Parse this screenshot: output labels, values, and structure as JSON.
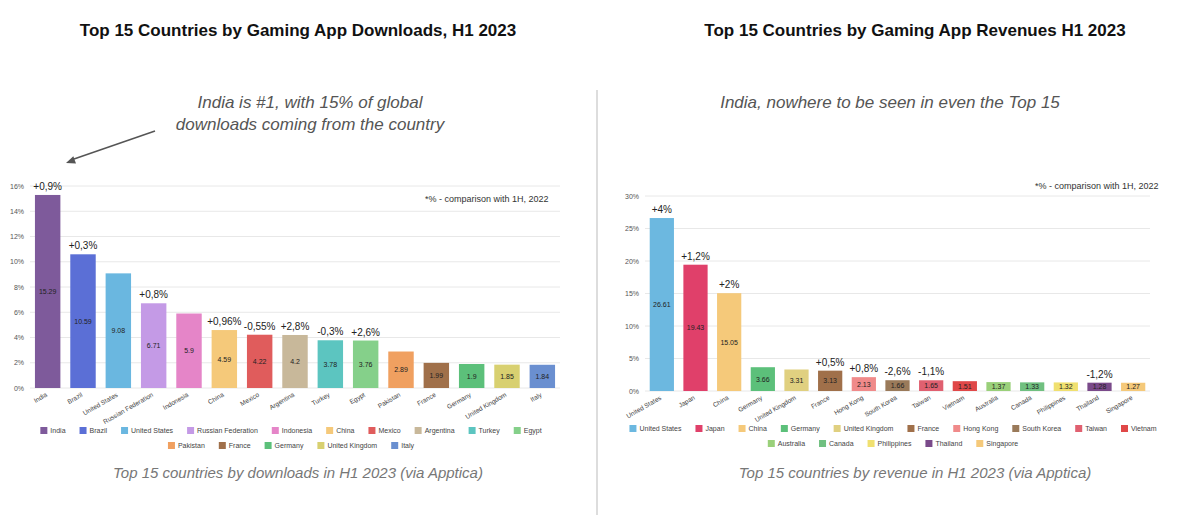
{
  "chart_data": [
    {
      "type": "bar",
      "title": "Top 15 Countries by Gaming App Downloads, H1 2023",
      "annotation": "India is #1, with 15% of global downloads coming from the country",
      "note": "*% - comparison with 1H, 2022",
      "caption": "Top 15 countries by downloads in H1 2023 (via Apptica)",
      "categories": [
        "India",
        "Brazil",
        "United States",
        "Russian Federation",
        "Indonesia",
        "China",
        "Mexico",
        "Argentina",
        "Turkey",
        "Egypt",
        "Pakistan",
        "France",
        "Germany",
        "United Kingdom",
        "Italy"
      ],
      "values": [
        15.29,
        10.59,
        9.08,
        6.71,
        5.9,
        4.59,
        4.22,
        4.2,
        3.78,
        3.76,
        2.89,
        1.99,
        1.9,
        1.85,
        1.84
      ],
      "colors": [
        "#7e5a9b",
        "#5b6fd6",
        "#6ab7e0",
        "#c49ae6",
        "#e585c8",
        "#f5c97a",
        "#e05c5c",
        "#c8b89a",
        "#5cc5c0",
        "#85d08a",
        "#f0a060",
        "#a0704a",
        "#5cc07a",
        "#d8d070",
        "#6a8fd0"
      ],
      "change_labels": [
        "+0,9%",
        "+0,3%",
        null,
        "+0,8%",
        null,
        "+0,96%",
        "-0,55%",
        "+2,8%",
        "-0,3%",
        "+2,6%",
        null,
        null,
        null,
        null,
        null
      ],
      "ylim": [
        0,
        16
      ],
      "yticks": [
        {
          "value": 0,
          "label": "0%"
        },
        {
          "value": 2,
          "label": "2%"
        },
        {
          "value": 4,
          "label": "4%"
        },
        {
          "value": 6,
          "label": "6%"
        },
        {
          "value": 8,
          "label": "8%"
        },
        {
          "value": 10,
          "label": "10%"
        },
        {
          "value": 12,
          "label": "12%"
        },
        {
          "value": 14,
          "label": "14%"
        },
        {
          "value": 16,
          "label": "16%"
        }
      ],
      "grid": true,
      "data_labels": true,
      "legend": "bottom"
    },
    {
      "type": "bar",
      "title": "Top 15 Countries by Gaming App Revenues H1 2023",
      "annotation": "India, nowhere to be seen in even the Top 15",
      "note": "*% - comparison with 1H, 2022",
      "caption": "Top 15 countries by revenue in H1 2023 (via Apptica)",
      "categories": [
        "United States",
        "Japan",
        "China",
        "Germany",
        "United Kingdom",
        "France",
        "Hong Kong",
        "South Korea",
        "Taiwan",
        "Vietnam",
        "Australia",
        "Canada",
        "Philippines",
        "Thailand",
        "Singapore"
      ],
      "values": [
        26.61,
        19.43,
        15.05,
        3.66,
        3.31,
        3.13,
        2.13,
        1.66,
        1.65,
        1.51,
        1.37,
        1.33,
        1.32,
        1.28,
        1.27
      ],
      "colors": [
        "#6cb8e0",
        "#e0406a",
        "#f5c97a",
        "#5cc07a",
        "#e0d080",
        "#a0704a",
        "#f08a8a",
        "#9a7a5a",
        "#e06070",
        "#e04848",
        "#9ad07a",
        "#70c080",
        "#f0e070",
        "#7a4a8a",
        "#f5c97a"
      ],
      "change_labels": [
        "+4%",
        "+1,2%",
        "+2%",
        null,
        null,
        "+0,5%",
        "+0,8%",
        "-2,6%",
        "-1,1%",
        null,
        null,
        null,
        null,
        "-1,2%",
        null
      ],
      "ylim": [
        0,
        30
      ],
      "yticks": [
        {
          "value": 0,
          "label": "0%"
        },
        {
          "value": 5,
          "label": "5%"
        },
        {
          "value": 10,
          "label": "10%"
        },
        {
          "value": 15,
          "label": "15%"
        },
        {
          "value": 20,
          "label": "20%"
        },
        {
          "value": 25,
          "label": "25%"
        },
        {
          "value": 30,
          "label": "30%"
        }
      ],
      "grid": true,
      "data_labels": true,
      "legend": "bottom"
    }
  ]
}
